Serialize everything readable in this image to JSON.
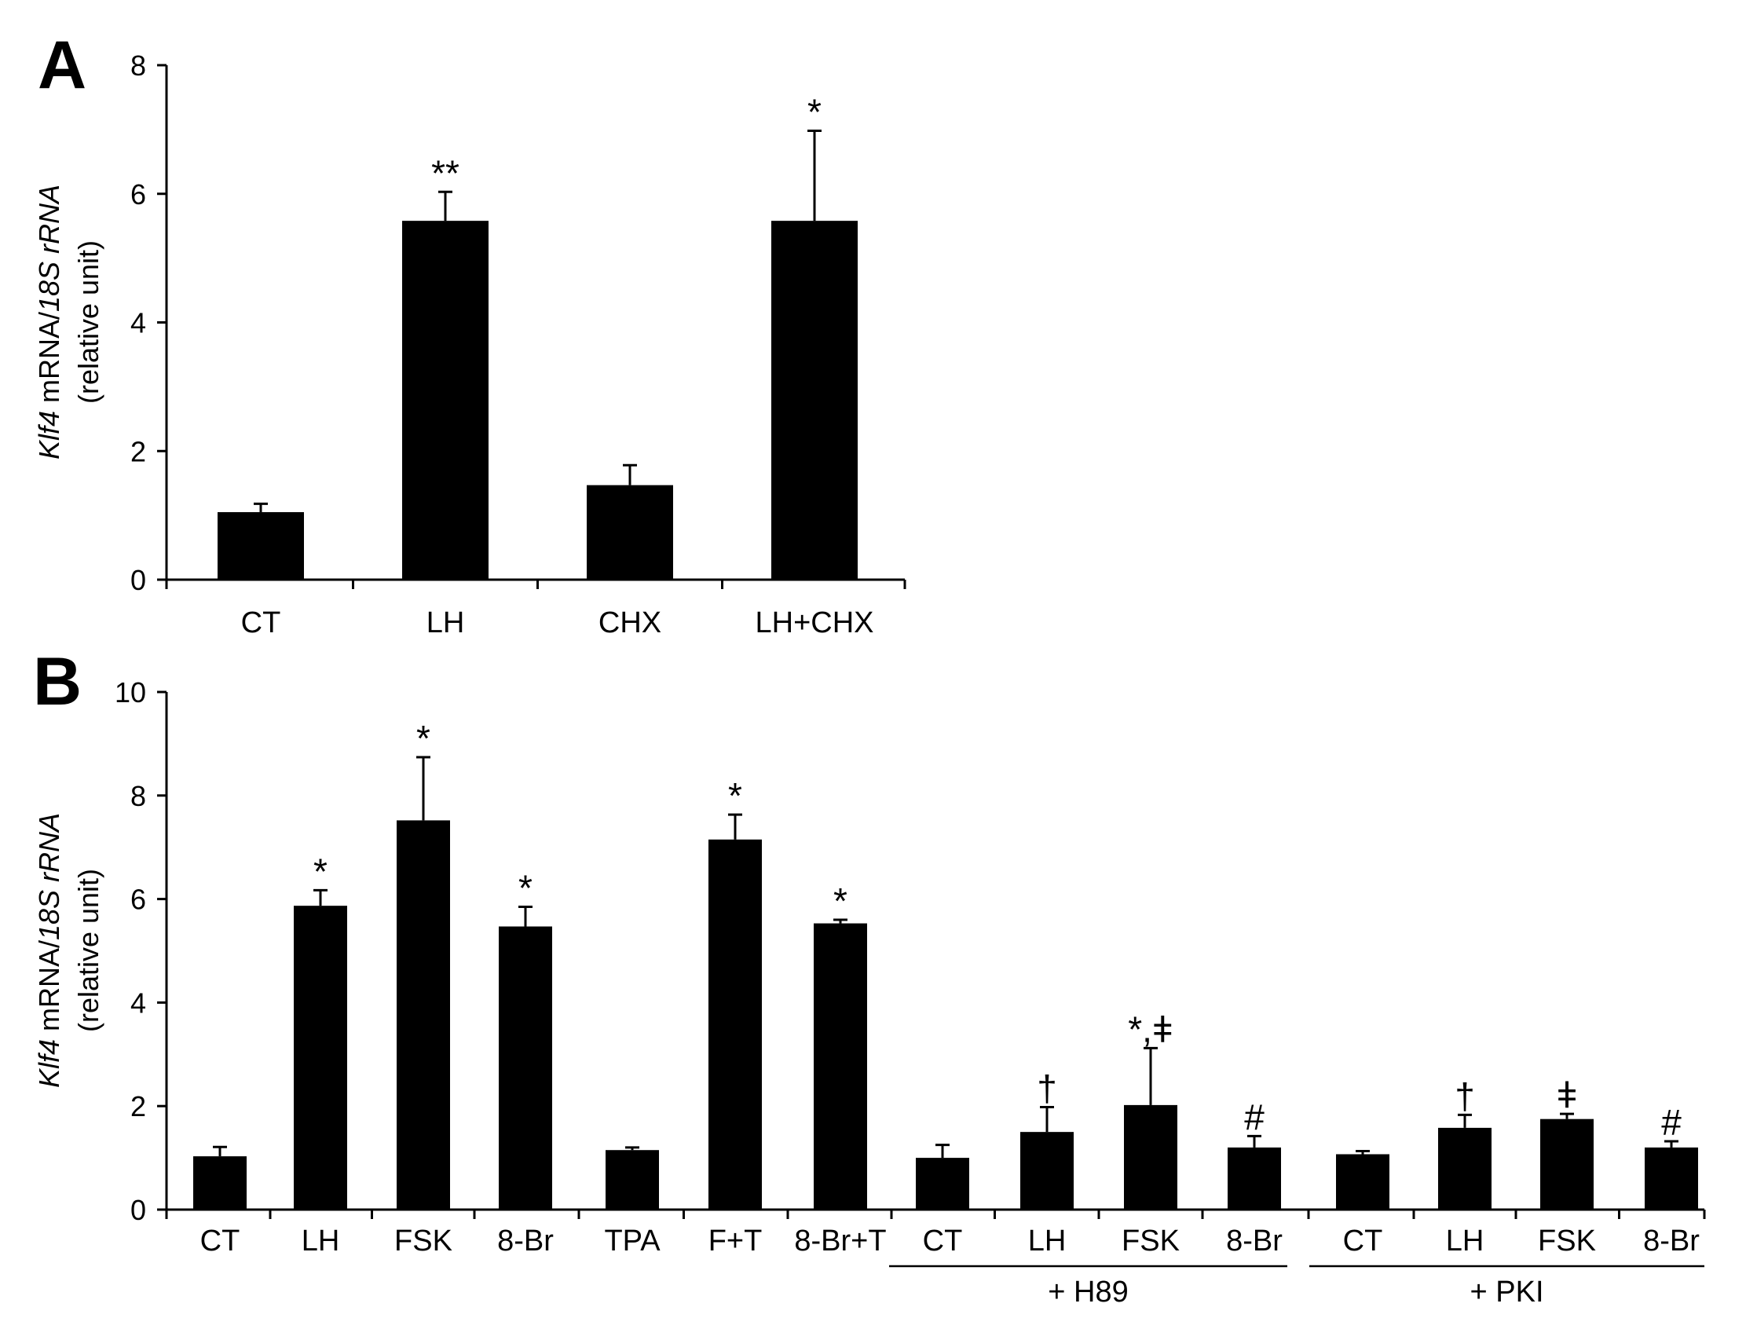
{
  "chart_data": [
    {
      "type": "bar",
      "panel": "A",
      "ylabel_lines": [
        {
          "italic": "Klf4",
          "normal": " mRNA/",
          "italic2": "18S rRNA"
        },
        {
          "normal": "(relative unit)"
        }
      ],
      "categories": [
        "CT",
        "LH",
        "CHX",
        "LH+CHX"
      ],
      "values": [
        1.05,
        5.58,
        1.47,
        5.58
      ],
      "errors": [
        0.13,
        0.45,
        0.31,
        1.4
      ],
      "annotations": [
        "",
        "**",
        "",
        "*"
      ],
      "ylim": [
        0,
        8
      ],
      "yticks": [
        0,
        2,
        4,
        6,
        8
      ],
      "grid": false,
      "legend": "none",
      "bar_color": "#000000"
    },
    {
      "type": "bar",
      "panel": "B",
      "ylabel_lines": [
        {
          "italic": "Klf4",
          "normal": " mRNA/",
          "italic2": "18S rRNA"
        },
        {
          "normal": "(relative unit)"
        }
      ],
      "categories": [
        "CT",
        "LH",
        "FSK",
        "8-Br",
        "TPA",
        "F+T",
        "8-Br+T",
        "CT",
        "LH",
        "FSK",
        "8-Br",
        "CT",
        "LH",
        "FSK",
        "8-Br"
      ],
      "values": [
        1.03,
        5.87,
        7.52,
        5.47,
        1.15,
        7.15,
        5.53,
        1.0,
        1.5,
        2.02,
        1.2,
        1.07,
        1.58,
        1.75,
        1.2
      ],
      "errors": [
        0.18,
        0.3,
        1.22,
        0.38,
        0.05,
        0.48,
        0.07,
        0.25,
        0.48,
        1.1,
        0.22,
        0.06,
        0.25,
        0.1,
        0.12
      ],
      "annotations": [
        "",
        "*",
        "*",
        "*",
        "",
        "*",
        "*",
        "",
        "†",
        "*,ǂ",
        "#",
        "",
        "†",
        "ǂ",
        "#"
      ],
      "groups": [
        {
          "label": "+ H89",
          "start": 7,
          "end": 10
        },
        {
          "label": "+ PKI",
          "start": 11,
          "end": 14
        }
      ],
      "ylim": [
        0,
        10
      ],
      "yticks": [
        0,
        2,
        4,
        6,
        8,
        10
      ],
      "grid": false,
      "legend": "none",
      "bar_color": "#000000"
    }
  ]
}
